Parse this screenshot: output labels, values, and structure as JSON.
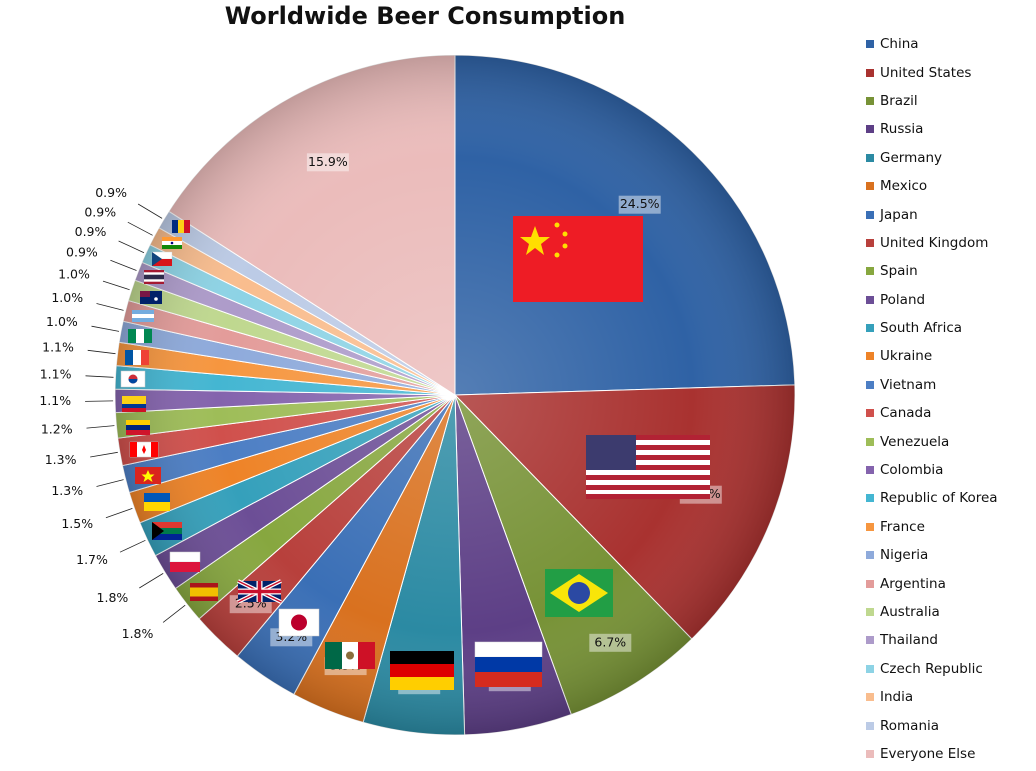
{
  "chart_data": {
    "type": "pie",
    "title": "Worldwide Beer Consumption",
    "slices": [
      {
        "label": "China",
        "value": 24.5,
        "value_label": "24.5%",
        "color": "#2f62a5"
      },
      {
        "label": "United States",
        "value": 13.2,
        "value_label": "13.2%",
        "color": "#a93230"
      },
      {
        "label": "Brazil",
        "value": 6.7,
        "value_label": "6.7%",
        "color": "#779236"
      },
      {
        "label": "Russia",
        "value": 5.1,
        "value_label": "5.1%",
        "color": "#5d3f86"
      },
      {
        "label": "Germany",
        "value": 4.8,
        "value_label": "4.8%",
        "color": "#2b8aa3"
      },
      {
        "label": "Mexico",
        "value": 3.5,
        "value_label": "3.5%",
        "color": "#d9711f"
      },
      {
        "label": "Japan",
        "value": 3.2,
        "value_label": "3.2%",
        "color": "#3a6fb6"
      },
      {
        "label": "United Kingdom",
        "value": 2.5,
        "value_label": "2.5%",
        "color": "#b8403c"
      },
      {
        "label": "Spain",
        "value": 1.8,
        "value_label": "1.8%",
        "color": "#87a73f"
      },
      {
        "label": "Poland",
        "value": 1.8,
        "value_label": "1.8%",
        "color": "#6c4e96"
      },
      {
        "label": "South Africa",
        "value": 1.7,
        "value_label": "1.7%",
        "color": "#35a0bb"
      },
      {
        "label": "Ukraine",
        "value": 1.5,
        "value_label": "1.5%",
        "color": "#ee8327"
      },
      {
        "label": "Vietnam",
        "value": 1.3,
        "value_label": "1.3%",
        "color": "#4c7ec4"
      },
      {
        "label": "Canada",
        "value": 1.3,
        "value_label": "1.3%",
        "color": "#d0504c"
      },
      {
        "label": "Venezuela",
        "value": 1.2,
        "value_label": "1.2%",
        "color": "#9ebd58"
      },
      {
        "label": "Colombia",
        "value": 1.1,
        "value_label": "1.1%",
        "color": "#8463ad"
      },
      {
        "label": "Republic of Korea",
        "value": 1.1,
        "value_label": "1.1%",
        "color": "#44b6d2"
      },
      {
        "label": "France",
        "value": 1.1,
        "value_label": "1.1%",
        "color": "#f6963f"
      },
      {
        "label": "Nigeria",
        "value": 1.0,
        "value_label": "1.0%",
        "color": "#8eaadb"
      },
      {
        "label": "Argentina",
        "value": 1.0,
        "value_label": "1.0%",
        "color": "#e39c9a"
      },
      {
        "label": "Australia",
        "value": 1.0,
        "value_label": "1.0%",
        "color": "#bfd88f"
      },
      {
        "label": "Thailand",
        "value": 0.9,
        "value_label": "0.9%",
        "color": "#ad9bca"
      },
      {
        "label": "Czech Republic",
        "value": 0.9,
        "value_label": "0.9%",
        "color": "#8dd3e5"
      },
      {
        "label": "India",
        "value": 0.9,
        "value_label": "0.9%",
        "color": "#f9bd8e"
      },
      {
        "label": "Romania",
        "value": 0.9,
        "value_label": "0.9%",
        "color": "#bccbe6"
      },
      {
        "label": "Everyone Else",
        "value": 15.9,
        "value_label": "15.9%",
        "color": "#ebbcbb"
      }
    ],
    "legend_position": "right"
  }
}
